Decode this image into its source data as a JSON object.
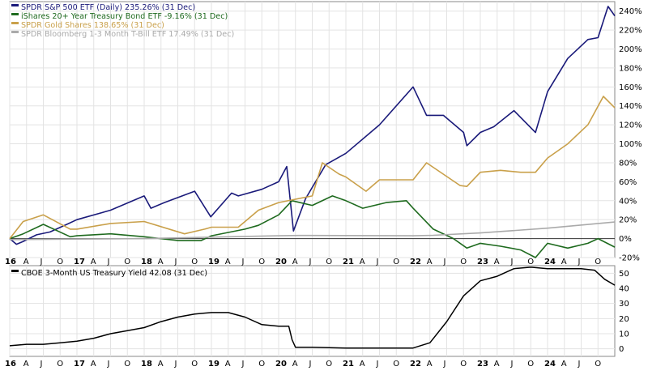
{
  "chart_data": [
    {
      "type": "line",
      "title": "",
      "legend_position": "top-left",
      "grid": true,
      "x_tick_labels": [
        "16",
        "A",
        "J",
        "O",
        "17",
        "A",
        "J",
        "O",
        "18",
        "A",
        "J",
        "O",
        "19",
        "A",
        "J",
        "O",
        "20",
        "A",
        "J",
        "O",
        "21",
        "A",
        "J",
        "O",
        "22",
        "A",
        "J",
        "O",
        "23",
        "A",
        "J",
        "O",
        "24",
        "A",
        "J",
        "O"
      ],
      "ylim": [
        -20,
        250
      ],
      "y_ticks": [
        -20,
        0,
        20,
        40,
        60,
        80,
        100,
        120,
        140,
        160,
        180,
        200,
        220,
        240
      ],
      "y_tick_format": "percent",
      "series": [
        {
          "name": "SPDR S&P 500 ETF (Daily) 235.26% (31 Dec)",
          "color": "#1a1a7a",
          "x": [
            2016.0,
            2016.1,
            2016.2,
            2016.4,
            2016.6,
            2016.85,
            2017.0,
            2017.5,
            2018.0,
            2018.1,
            2018.3,
            2018.75,
            2018.99,
            2019.3,
            2019.4,
            2019.75,
            2020.0,
            2020.12,
            2020.22,
            2020.4,
            2020.7,
            2021.0,
            2021.5,
            2022.0,
            2022.2,
            2022.45,
            2022.75,
            2022.8,
            2023.0,
            2023.2,
            2023.5,
            2023.82,
            2024.0,
            2024.3,
            2024.6,
            2024.75,
            2024.9,
            2025.0
          ],
          "y": [
            0,
            -6,
            -3,
            4,
            7,
            15,
            20,
            30,
            45,
            32,
            38,
            50,
            23,
            48,
            45,
            52,
            60,
            76,
            8,
            42,
            78,
            90,
            120,
            160,
            130,
            130,
            112,
            98,
            112,
            118,
            135,
            112,
            155,
            190,
            210,
            212,
            245,
            235
          ]
        },
        {
          "name": "iShares 20+ Year Treasury Bond ETF -9.16% (31 Dec)",
          "color": "#1e6a1e",
          "x": [
            2016.0,
            2016.2,
            2016.5,
            2016.9,
            2017.0,
            2017.5,
            2018.0,
            2018.5,
            2018.85,
            2019.0,
            2019.5,
            2019.7,
            2020.0,
            2020.2,
            2020.5,
            2020.8,
            2021.0,
            2021.25,
            2021.6,
            2021.9,
            2022.0,
            2022.3,
            2022.6,
            2022.8,
            2023.0,
            2023.3,
            2023.6,
            2023.82,
            2024.0,
            2024.3,
            2024.6,
            2024.75,
            2025.0
          ],
          "y": [
            0,
            5,
            15,
            2,
            3,
            5,
            2,
            -2,
            -2,
            3,
            10,
            14,
            25,
            40,
            35,
            45,
            40,
            32,
            38,
            40,
            32,
            10,
            0,
            -10,
            -5,
            -8,
            -12,
            -20,
            -5,
            -10,
            -5,
            0,
            -9
          ]
        },
        {
          "name": "SPDR Gold Shares 138.65% (31 Dec)",
          "color": "#c9a04a",
          "x": [
            2016.0,
            2016.2,
            2016.5,
            2016.9,
            2017.0,
            2017.5,
            2018.0,
            2018.6,
            2018.9,
            2019.0,
            2019.4,
            2019.7,
            2020.0,
            2020.5,
            2020.65,
            2020.9,
            2021.0,
            2021.3,
            2021.5,
            2021.9,
            2022.0,
            2022.2,
            2022.7,
            2022.8,
            2023.0,
            2023.3,
            2023.6,
            2023.82,
            2024.0,
            2024.3,
            2024.6,
            2024.83,
            2025.0
          ],
          "y": [
            0,
            18,
            25,
            10,
            10,
            16,
            18,
            5,
            10,
            12,
            12,
            30,
            38,
            45,
            80,
            68,
            65,
            50,
            62,
            62,
            62,
            80,
            56,
            55,
            70,
            72,
            70,
            70,
            85,
            100,
            120,
            150,
            138
          ]
        },
        {
          "name": "SPDR Bloomberg 1-3 Month T-Bill ETF 17.49% (31 Dec)",
          "color": "#aaaaaa",
          "x": [
            2016.0,
            2018.0,
            2019.0,
            2020.0,
            2020.3,
            2022.0,
            2022.3,
            2023.0,
            2024.0,
            2025.0
          ],
          "y": [
            -1,
            0,
            1.5,
            3,
            3.3,
            3,
            3.5,
            6,
            11,
            17.49
          ]
        }
      ]
    },
    {
      "type": "line",
      "title": "",
      "legend_position": "top-left",
      "grid": true,
      "x_tick_labels": [
        "16",
        "A",
        "J",
        "O",
        "17",
        "A",
        "J",
        "O",
        "18",
        "A",
        "J",
        "O",
        "19",
        "A",
        "J",
        "O",
        "20",
        "A",
        "J",
        "O",
        "21",
        "A",
        "J",
        "O",
        "22",
        "A",
        "J",
        "O",
        "23",
        "A",
        "J",
        "O",
        "24",
        "A",
        "J",
        "O"
      ],
      "ylim": [
        -5,
        55
      ],
      "y_ticks": [
        0,
        10,
        20,
        30,
        40,
        50
      ],
      "series": [
        {
          "name": "CBOE 3-Month US Treasury Yield 42.08 (31 Dec)",
          "color": "#000000",
          "x": [
            2016.0,
            2016.25,
            2016.5,
            2016.75,
            2017.0,
            2017.25,
            2017.5,
            2017.75,
            2018.0,
            2018.25,
            2018.5,
            2018.75,
            2019.0,
            2019.25,
            2019.5,
            2019.75,
            2020.0,
            2020.15,
            2020.2,
            2020.25,
            2020.5,
            2021.0,
            2021.5,
            2022.0,
            2022.25,
            2022.5,
            2022.75,
            2023.0,
            2023.25,
            2023.5,
            2023.75,
            2024.0,
            2024.5,
            2024.7,
            2024.85,
            2025.0
          ],
          "y": [
            2,
            3,
            3,
            4,
            5,
            7,
            10,
            12,
            14,
            18,
            21,
            23,
            24,
            24,
            21,
            16,
            15,
            15,
            6,
            1,
            1,
            0.5,
            0.5,
            0.5,
            4,
            18,
            35,
            45,
            48,
            53,
            54,
            53,
            53,
            52,
            46,
            42.08
          ]
        }
      ]
    }
  ]
}
